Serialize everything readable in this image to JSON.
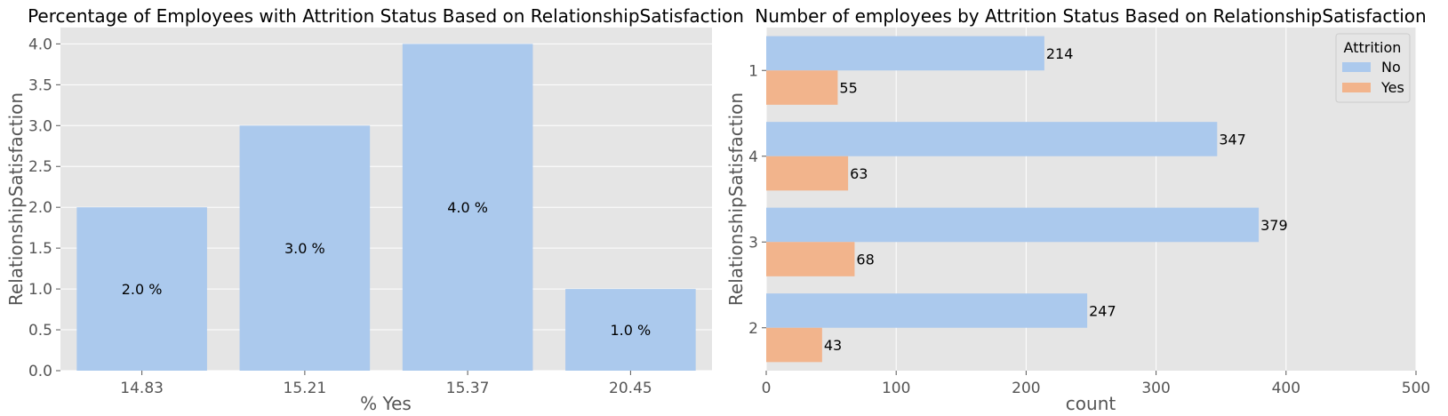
{
  "chart_data": [
    {
      "type": "bar",
      "title": "Percentage of Employees with Attrition Status Based on RelationshipSatisfaction",
      "xlabel": "% Yes",
      "ylabel": "RelationshipSatisfaction",
      "categories": [
        "14.83",
        "15.21",
        "15.37",
        "20.45"
      ],
      "values": [
        2,
        3,
        4,
        1
      ],
      "data_labels": [
        "2.0 %",
        "3.0 %",
        "4.0 %",
        "1.0 %"
      ],
      "ylim": [
        0,
        4.2
      ],
      "yticks": [
        "0.0",
        "0.5",
        "1.0",
        "1.5",
        "2.0",
        "2.5",
        "3.0",
        "3.5",
        "4.0"
      ],
      "grid": true,
      "color": "#abc9ed"
    },
    {
      "type": "bar",
      "orientation": "horizontal",
      "title": "Number of employees by Attrition Status Based on RelationshipSatisfaction",
      "xlabel": "count",
      "ylabel": "RelationshipSatisfaction",
      "categories": [
        "1",
        "4",
        "3",
        "2"
      ],
      "series": [
        {
          "name": "No",
          "values": [
            214,
            347,
            379,
            247
          ],
          "color": "#abc9ed"
        },
        {
          "name": "Yes",
          "values": [
            55,
            63,
            68,
            43
          ],
          "color": "#f2b48c"
        }
      ],
      "xlim": [
        0,
        500
      ],
      "xticks": [
        "0",
        "100",
        "200",
        "300",
        "400",
        "500"
      ],
      "legend": {
        "title": "Attrition",
        "placement": "top-right"
      },
      "grid": true
    }
  ]
}
